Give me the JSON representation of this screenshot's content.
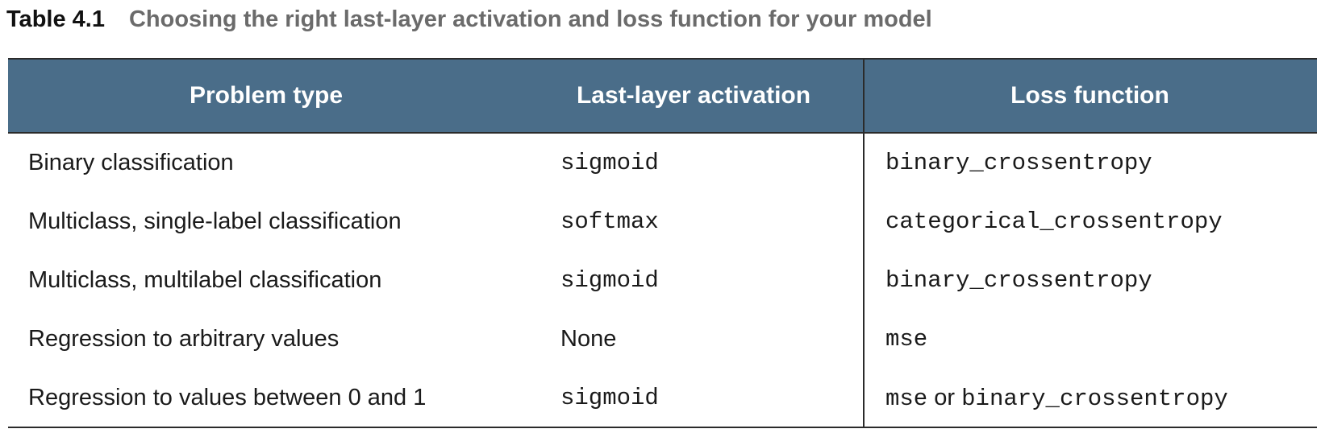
{
  "caption": {
    "number": "Table 4.1",
    "title": "Choosing the right last-layer activation and loss function for your model"
  },
  "table": {
    "headers": {
      "problem_type": "Problem type",
      "activation": "Last-layer activation",
      "loss": "Loss function"
    },
    "rows": [
      {
        "problem_type": "Binary classification",
        "activation": "sigmoid",
        "loss": "binary_crossentropy"
      },
      {
        "problem_type": "Multiclass, single-label classification",
        "activation": "softmax",
        "loss": "categorical_crossentropy"
      },
      {
        "problem_type": "Multiclass, multilabel classification",
        "activation": "sigmoid",
        "loss": "binary_crossentropy"
      },
      {
        "problem_type": "Regression to arbitrary values",
        "activation": "None",
        "loss": "mse"
      },
      {
        "problem_type": "Regression to values between 0 and 1",
        "activation": "sigmoid",
        "loss_part1": "mse",
        "loss_connector": "or",
        "loss_part2": "binary_crossentropy"
      }
    ]
  },
  "colors": {
    "header_background": "#4a6d89",
    "header_text": "#ffffff",
    "caption_title": "#6b6b6b",
    "rules": "#2b2b2b"
  }
}
